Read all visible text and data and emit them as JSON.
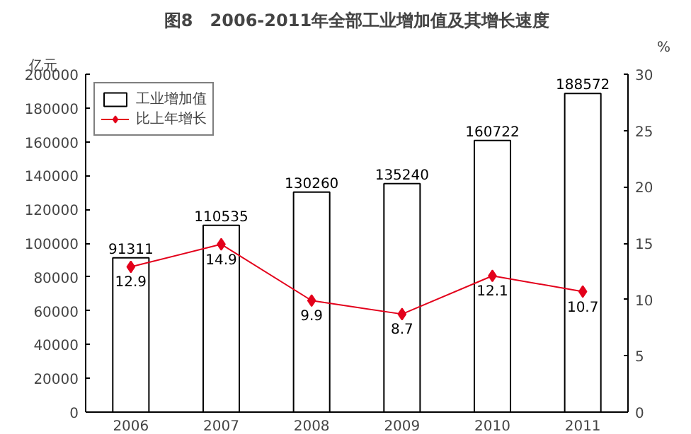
{
  "chart_data": {
    "type": "bar",
    "title": "图8　2006-2011年全部工业增加值及其增长速度",
    "ylabel": "亿元",
    "y2label": "%",
    "categories": [
      "2006",
      "2007",
      "2008",
      "2009",
      "2010",
      "2011"
    ],
    "series": [
      {
        "name": "工业增加值",
        "color": "#ffffff",
        "values": [
          91311,
          110535,
          130260,
          135240,
          160722,
          188572
        ]
      },
      {
        "name": "比上年增长",
        "type": "line",
        "axis": "y2",
        "color": "#e3001b",
        "marker": "diamond",
        "values": [
          12.9,
          14.9,
          9.9,
          8.7,
          12.1,
          10.7
        ]
      }
    ],
    "ylim": [
      0,
      200000
    ],
    "yticks": [
      0,
      20000,
      40000,
      60000,
      80000,
      100000,
      120000,
      140000,
      160000,
      180000,
      200000
    ],
    "y2lim": [
      0,
      30
    ],
    "y2ticks": [
      0,
      5,
      10,
      15,
      20,
      25,
      30
    ],
    "data_labels": true,
    "legend": "top left",
    "grid": false
  }
}
